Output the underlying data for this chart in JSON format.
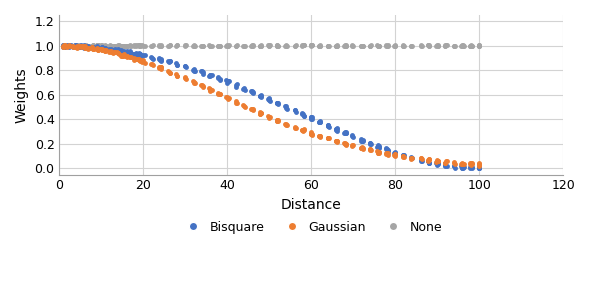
{
  "title": "",
  "xlabel": "Distance",
  "ylabel": "Weights",
  "xlim": [
    0,
    120
  ],
  "ylim": [
    -0.05,
    1.25
  ],
  "yticks": [
    0.0,
    0.2,
    0.4,
    0.6,
    0.8,
    1.0,
    1.2
  ],
  "xticks": [
    0,
    20,
    40,
    60,
    80,
    100,
    120
  ],
  "bandwidth": 100,
  "bisquare_color": "#4472C4",
  "gaussian_color": "#ED7D31",
  "none_color": "#A5A5A5",
  "marker_size": 3.5,
  "legend_labels": [
    "Bisquare",
    "Gaussian",
    "None"
  ],
  "figsize": [
    5.9,
    3.0
  ],
  "dpi": 100,
  "gaussian_sigma_factor": 0.38
}
